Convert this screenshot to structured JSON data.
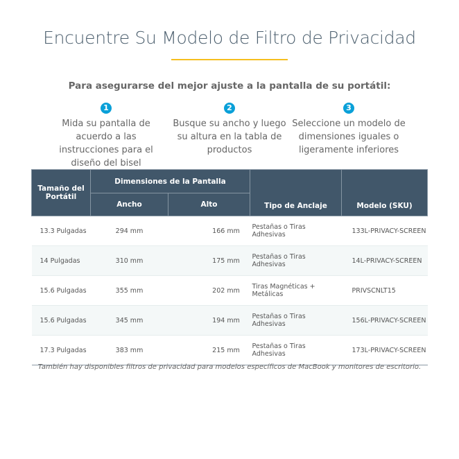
{
  "title": "Encuentre Su Modelo de Filtro de Privacidad",
  "subtitle": "Para asegurarse del mejor ajuste a la pantalla de su portátil:",
  "steps": [
    {
      "num": "1",
      "text": "Mida su pantalla de acuerdo a las instrucciones para el diseño del bisel"
    },
    {
      "num": "2",
      "text": "Busque su ancho y luego su altura en la tabla de productos"
    },
    {
      "num": "3",
      "text": "Seleccione un modelo de dimensiones iguales o ligeramente inferiores"
    }
  ],
  "table": {
    "headers": {
      "size": "Tamaño del Portátil",
      "dims": "Dimensiones de la Pantalla",
      "width": "Ancho",
      "height": "Alto",
      "mount": "Tipo de Anclaje",
      "sku": "Modelo (SKU)"
    },
    "rows": [
      [
        "13.3 Pulgadas",
        "294 mm",
        "166 mm",
        "Pestañas o Tiras Adhesivas",
        "133L-PRIVACY-SCREEN"
      ],
      [
        "14 Pulgadas",
        "310 mm",
        "175 mm",
        "Pestañas o Tiras Adhesivas",
        "14L-PRIVACY-SCREEN"
      ],
      [
        "15.6 Pulgadas",
        "355 mm",
        "202 mm",
        "Tiras Magnéticas + Metálicas",
        "PRIVSCNLT15"
      ],
      [
        "15.6 Pulgadas",
        "345 mm",
        "194 mm",
        "Pestañas o Tiras Adhesivas",
        "156L-PRIVACY-SCREEN"
      ],
      [
        "17.3 Pulgadas",
        "383 mm",
        "215 mm",
        "Pestañas o Tiras Adhesivas",
        "173L-PRIVACY-SCREEN"
      ]
    ]
  },
  "note": "También hay disponibles filtros de privacidad para modelos específicos de MacBook y monitores de escritorio.",
  "colors": {
    "header": "#41576a",
    "accent": "#f5be1e",
    "step": "#0aa0d8"
  }
}
